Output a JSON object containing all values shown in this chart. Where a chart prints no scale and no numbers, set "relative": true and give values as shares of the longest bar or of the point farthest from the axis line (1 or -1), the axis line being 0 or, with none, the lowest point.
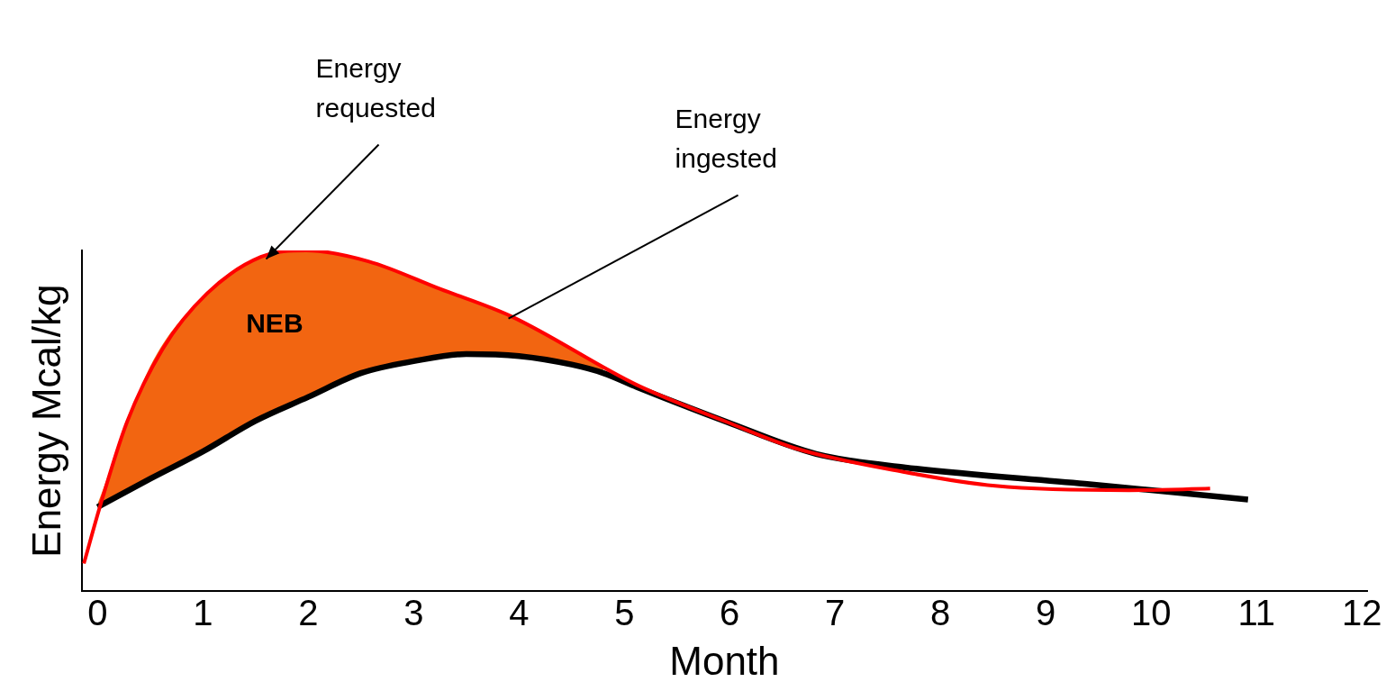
{
  "chart_data": {
    "type": "line",
    "relative": true,
    "xlabel": "Month",
    "ylabel": "Energy Mcal/kg",
    "xlim": [
      -0.15,
      12.05
    ],
    "xticks": [
      0,
      1,
      2,
      3,
      4,
      5,
      6,
      7,
      8,
      9,
      10,
      11,
      12
    ],
    "grid": false,
    "legend": false,
    "marker": "none",
    "line_style": "solid",
    "series": [
      {
        "type": "line",
        "color": "#ff0000",
        "x": [
          -0.13,
          0.03,
          0.28,
          0.62,
          1.04,
          1.55,
          1.98,
          2.57,
          3.25,
          3.93,
          5.12,
          5.97,
          6.65,
          7.67,
          8.52,
          9.79,
          10.56
        ],
        "values": [
          0.081,
          0.256,
          0.497,
          0.712,
          0.874,
          0.981,
          1.0,
          0.968,
          0.887,
          0.806,
          0.605,
          0.497,
          0.417,
          0.349,
          0.309,
          0.296,
          0.301
        ]
      },
      {
        "type": "line",
        "color": "#000000",
        "x": [
          0,
          0.5,
          1,
          1.5,
          2,
          2.5,
          3,
          3.5,
          4,
          4.5,
          4.8,
          5.12,
          5.97,
          6.82,
          7.67,
          9.37,
          10.92
        ],
        "values": [
          0.247,
          0.33,
          0.41,
          0.5,
          0.57,
          0.64,
          0.675,
          0.696,
          0.69,
          0.665,
          0.64,
          0.599,
          0.497,
          0.403,
          0.363,
          0.315,
          0.269
        ],
        "lower": [
          0.247,
          0.33,
          0.41,
          0.5,
          0.57,
          0.64,
          0.675,
          0.696,
          0.69,
          0.665,
          0.64,
          null,
          null,
          null,
          null,
          null,
          null
        ],
        "upper": [
          0.256,
          0.66,
          0.865,
          0.975,
          1.0,
          0.972,
          0.92,
          0.86,
          0.8,
          0.71,
          0.66,
          null,
          null,
          null,
          null,
          null,
          null
        ]
      }
    ],
    "annotations": [
      {
        "text": "Energy\nrequested",
        "x": 1.6,
        "y": 0.975
      },
      {
        "text": "Energy\ningested",
        "x": 3.9,
        "y": 0.8
      },
      "NEB"
    ]
  }
}
